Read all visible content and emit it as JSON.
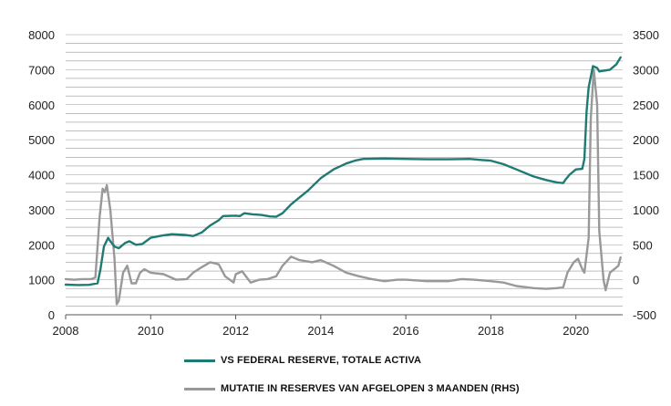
{
  "chart_data": {
    "type": "line",
    "title": "",
    "xlabel": "",
    "ylabel": "",
    "x_ticks": [
      "2008",
      "2010",
      "2012",
      "2014",
      "2016",
      "2018",
      "2020"
    ],
    "xlim": [
      2008,
      2021.1
    ],
    "y_left": {
      "range": [
        0,
        8000
      ],
      "ticks": [
        "0",
        "1000",
        "2000",
        "3000",
        "4000",
        "5000",
        "6000",
        "7000",
        "8000"
      ]
    },
    "y_right": {
      "range": [
        -500,
        3500
      ],
      "ticks": [
        "-500",
        "0",
        "500",
        "1000",
        "1500",
        "2000",
        "2500",
        "3000",
        "3500"
      ]
    },
    "grid": true,
    "legend_position": "bottom",
    "series": [
      {
        "name": "VS FEDERAL RESERVE, TOTALE ACTIVA",
        "axis": "left",
        "color": "#1e7b73",
        "points": [
          [
            2008.0,
            860
          ],
          [
            2008.3,
            850
          ],
          [
            2008.55,
            855
          ],
          [
            2008.75,
            900
          ],
          [
            2008.82,
            1300
          ],
          [
            2008.9,
            1950
          ],
          [
            2009.0,
            2200
          ],
          [
            2009.05,
            2100
          ],
          [
            2009.15,
            1950
          ],
          [
            2009.25,
            1900
          ],
          [
            2009.4,
            2050
          ],
          [
            2009.5,
            2100
          ],
          [
            2009.65,
            2000
          ],
          [
            2009.8,
            2020
          ],
          [
            2010.0,
            2200
          ],
          [
            2010.3,
            2270
          ],
          [
            2010.5,
            2300
          ],
          [
            2010.8,
            2280
          ],
          [
            2011.0,
            2250
          ],
          [
            2011.2,
            2350
          ],
          [
            2011.4,
            2550
          ],
          [
            2011.6,
            2700
          ],
          [
            2011.7,
            2820
          ],
          [
            2012.0,
            2830
          ],
          [
            2012.1,
            2820
          ],
          [
            2012.2,
            2900
          ],
          [
            2012.4,
            2870
          ],
          [
            2012.6,
            2850
          ],
          [
            2012.8,
            2810
          ],
          [
            2012.95,
            2800
          ],
          [
            2013.1,
            2900
          ],
          [
            2013.3,
            3150
          ],
          [
            2013.5,
            3350
          ],
          [
            2013.7,
            3550
          ],
          [
            2014.0,
            3900
          ],
          [
            2014.3,
            4150
          ],
          [
            2014.6,
            4320
          ],
          [
            2014.8,
            4400
          ],
          [
            2015.0,
            4450
          ],
          [
            2015.5,
            4460
          ],
          [
            2016.0,
            4450
          ],
          [
            2016.5,
            4440
          ],
          [
            2017.0,
            4440
          ],
          [
            2017.5,
            4450
          ],
          [
            2017.8,
            4420
          ],
          [
            2018.0,
            4400
          ],
          [
            2018.3,
            4300
          ],
          [
            2018.6,
            4150
          ],
          [
            2019.0,
            3950
          ],
          [
            2019.3,
            3850
          ],
          [
            2019.55,
            3780
          ],
          [
            2019.7,
            3760
          ],
          [
            2019.75,
            3850
          ],
          [
            2019.85,
            4000
          ],
          [
            2020.0,
            4150
          ],
          [
            2020.15,
            4170
          ],
          [
            2020.2,
            4450
          ],
          [
            2020.25,
            5800
          ],
          [
            2020.3,
            6500
          ],
          [
            2020.4,
            7100
          ],
          [
            2020.5,
            7050
          ],
          [
            2020.55,
            6950
          ],
          [
            2020.8,
            7000
          ],
          [
            2020.95,
            7150
          ],
          [
            2021.05,
            7350
          ]
        ]
      },
      {
        "name": "MUTATIE IN RESERVES VAN AFGELOPEN 3 MAANDEN (RHS)",
        "axis": "right",
        "color": "#999999",
        "points": [
          [
            2008.0,
            10
          ],
          [
            2008.2,
            0
          ],
          [
            2008.4,
            10
          ],
          [
            2008.6,
            10
          ],
          [
            2008.7,
            30
          ],
          [
            2008.8,
            900
          ],
          [
            2008.87,
            1300
          ],
          [
            2008.92,
            1250
          ],
          [
            2008.97,
            1350
          ],
          [
            2009.05,
            1000
          ],
          [
            2009.15,
            300
          ],
          [
            2009.2,
            -350
          ],
          [
            2009.25,
            -300
          ],
          [
            2009.35,
            100
          ],
          [
            2009.45,
            200
          ],
          [
            2009.55,
            -50
          ],
          [
            2009.65,
            -50
          ],
          [
            2009.75,
            100
          ],
          [
            2009.85,
            150
          ],
          [
            2010.0,
            100
          ],
          [
            2010.3,
            80
          ],
          [
            2010.6,
            0
          ],
          [
            2010.85,
            10
          ],
          [
            2011.0,
            100
          ],
          [
            2011.2,
            180
          ],
          [
            2011.4,
            250
          ],
          [
            2011.6,
            220
          ],
          [
            2011.75,
            50
          ],
          [
            2011.95,
            -40
          ],
          [
            2012.0,
            80
          ],
          [
            2012.15,
            120
          ],
          [
            2012.35,
            -40
          ],
          [
            2012.55,
            0
          ],
          [
            2012.75,
            10
          ],
          [
            2012.95,
            50
          ],
          [
            2013.1,
            200
          ],
          [
            2013.3,
            330
          ],
          [
            2013.5,
            280
          ],
          [
            2013.8,
            250
          ],
          [
            2014.0,
            280
          ],
          [
            2014.3,
            200
          ],
          [
            2014.6,
            100
          ],
          [
            2014.9,
            50
          ],
          [
            2015.2,
            10
          ],
          [
            2015.5,
            -20
          ],
          [
            2015.8,
            0
          ],
          [
            2016.0,
            0
          ],
          [
            2016.5,
            -20
          ],
          [
            2017.0,
            -20
          ],
          [
            2017.3,
            10
          ],
          [
            2017.6,
            0
          ],
          [
            2018.0,
            -20
          ],
          [
            2018.3,
            -40
          ],
          [
            2018.6,
            -90
          ],
          [
            2019.0,
            -120
          ],
          [
            2019.3,
            -130
          ],
          [
            2019.55,
            -120
          ],
          [
            2019.7,
            -110
          ],
          [
            2019.8,
            100
          ],
          [
            2019.95,
            250
          ],
          [
            2020.05,
            300
          ],
          [
            2020.15,
            150
          ],
          [
            2020.2,
            100
          ],
          [
            2020.3,
            600
          ],
          [
            2020.35,
            2300
          ],
          [
            2020.42,
            3000
          ],
          [
            2020.5,
            2500
          ],
          [
            2020.55,
            700
          ],
          [
            2020.65,
            0
          ],
          [
            2020.7,
            -150
          ],
          [
            2020.8,
            100
          ],
          [
            2020.9,
            150
          ],
          [
            2021.0,
            200
          ],
          [
            2021.05,
            320
          ]
        ]
      }
    ]
  },
  "legend": {
    "items": [
      {
        "label": "VS FEDERAL RESERVE, TOTALE ACTIVA",
        "color": "#1e7b73"
      },
      {
        "label": "MUTATIE IN RESERVES VAN AFGELOPEN 3 MAANDEN (RHS)",
        "color": "#999999"
      }
    ]
  }
}
